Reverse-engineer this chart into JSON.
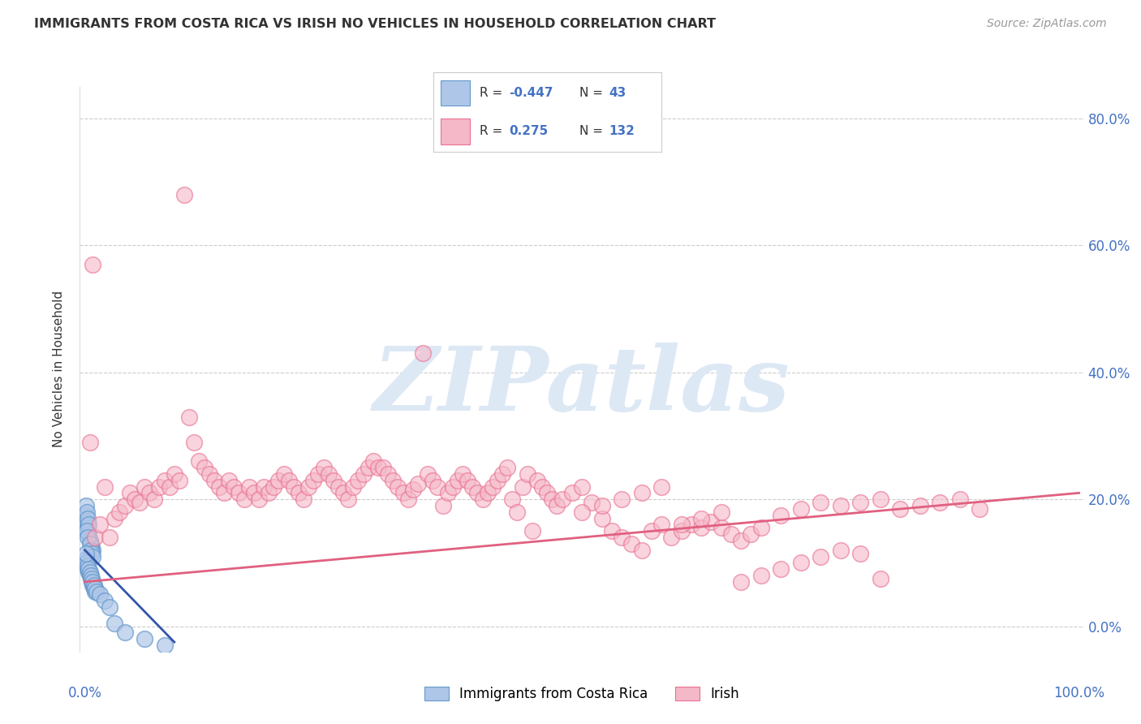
{
  "title": "IMMIGRANTS FROM COSTA RICA VS IRISH NO VEHICLES IN HOUSEHOLD CORRELATION CHART",
  "source": "Source: ZipAtlas.com",
  "ylabel": "No Vehicles in Household",
  "ytick_positions": [
    0.0,
    0.2,
    0.4,
    0.6,
    0.8
  ],
  "ytick_labels": [
    "0.0%",
    "20.0%",
    "40.0%",
    "60.0%",
    "80.0%"
  ],
  "color_blue_fill": "#aec6e8",
  "color_blue_edge": "#6699cc",
  "color_pink_fill": "#f5b8c8",
  "color_pink_edge": "#e87090",
  "line_blue": "#3355aa",
  "line_pink": "#e06080",
  "watermark": "ZIPatlas",
  "watermark_color": "#dde8f5",
  "xlim": [
    -0.005,
    1.005
  ],
  "ylim": [
    -0.04,
    0.85
  ],
  "blue_scatter": [
    [
      0.001,
      0.175
    ],
    [
      0.002,
      0.165
    ],
    [
      0.003,
      0.155
    ],
    [
      0.004,
      0.145
    ],
    [
      0.005,
      0.135
    ],
    [
      0.006,
      0.13
    ],
    [
      0.007,
      0.125
    ],
    [
      0.008,
      0.12
    ],
    [
      0.001,
      0.19
    ],
    [
      0.002,
      0.18
    ],
    [
      0.003,
      0.17
    ],
    [
      0.004,
      0.16
    ],
    [
      0.002,
      0.15
    ],
    [
      0.003,
      0.14
    ],
    [
      0.005,
      0.13
    ],
    [
      0.006,
      0.12
    ],
    [
      0.007,
      0.115
    ],
    [
      0.008,
      0.11
    ],
    [
      0.001,
      0.1
    ],
    [
      0.002,
      0.095
    ],
    [
      0.003,
      0.09
    ],
    [
      0.004,
      0.085
    ],
    [
      0.005,
      0.08
    ],
    [
      0.006,
      0.075
    ],
    [
      0.007,
      0.07
    ],
    [
      0.008,
      0.065
    ],
    [
      0.009,
      0.06
    ],
    [
      0.01,
      0.055
    ],
    [
      0.001,
      0.105
    ],
    [
      0.002,
      0.1
    ],
    [
      0.003,
      0.095
    ],
    [
      0.004,
      0.09
    ],
    [
      0.005,
      0.085
    ],
    [
      0.006,
      0.08
    ],
    [
      0.007,
      0.075
    ],
    [
      0.008,
      0.07
    ],
    [
      0.009,
      0.065
    ],
    [
      0.01,
      0.06
    ],
    [
      0.012,
      0.055
    ],
    [
      0.015,
      0.05
    ],
    [
      0.02,
      0.04
    ],
    [
      0.025,
      0.03
    ],
    [
      0.001,
      0.115
    ],
    [
      0.03,
      0.005
    ],
    [
      0.04,
      -0.01
    ],
    [
      0.06,
      -0.02
    ],
    [
      0.08,
      -0.03
    ]
  ],
  "pink_scatter": [
    [
      0.005,
      0.29
    ],
    [
      0.008,
      0.57
    ],
    [
      0.01,
      0.14
    ],
    [
      0.015,
      0.16
    ],
    [
      0.02,
      0.22
    ],
    [
      0.025,
      0.14
    ],
    [
      0.03,
      0.17
    ],
    [
      0.035,
      0.18
    ],
    [
      0.04,
      0.19
    ],
    [
      0.045,
      0.21
    ],
    [
      0.05,
      0.2
    ],
    [
      0.055,
      0.195
    ],
    [
      0.06,
      0.22
    ],
    [
      0.065,
      0.21
    ],
    [
      0.07,
      0.2
    ],
    [
      0.075,
      0.22
    ],
    [
      0.08,
      0.23
    ],
    [
      0.085,
      0.22
    ],
    [
      0.09,
      0.24
    ],
    [
      0.095,
      0.23
    ],
    [
      0.1,
      0.68
    ],
    [
      0.105,
      0.33
    ],
    [
      0.11,
      0.29
    ],
    [
      0.115,
      0.26
    ],
    [
      0.12,
      0.25
    ],
    [
      0.125,
      0.24
    ],
    [
      0.13,
      0.23
    ],
    [
      0.135,
      0.22
    ],
    [
      0.14,
      0.21
    ],
    [
      0.145,
      0.23
    ],
    [
      0.15,
      0.22
    ],
    [
      0.155,
      0.21
    ],
    [
      0.16,
      0.2
    ],
    [
      0.165,
      0.22
    ],
    [
      0.17,
      0.21
    ],
    [
      0.175,
      0.2
    ],
    [
      0.18,
      0.22
    ],
    [
      0.185,
      0.21
    ],
    [
      0.19,
      0.22
    ],
    [
      0.195,
      0.23
    ],
    [
      0.2,
      0.24
    ],
    [
      0.205,
      0.23
    ],
    [
      0.21,
      0.22
    ],
    [
      0.215,
      0.21
    ],
    [
      0.22,
      0.2
    ],
    [
      0.225,
      0.22
    ],
    [
      0.23,
      0.23
    ],
    [
      0.235,
      0.24
    ],
    [
      0.24,
      0.25
    ],
    [
      0.245,
      0.24
    ],
    [
      0.25,
      0.23
    ],
    [
      0.255,
      0.22
    ],
    [
      0.26,
      0.21
    ],
    [
      0.265,
      0.2
    ],
    [
      0.27,
      0.22
    ],
    [
      0.275,
      0.23
    ],
    [
      0.28,
      0.24
    ],
    [
      0.285,
      0.25
    ],
    [
      0.29,
      0.26
    ],
    [
      0.295,
      0.25
    ],
    [
      0.3,
      0.25
    ],
    [
      0.305,
      0.24
    ],
    [
      0.31,
      0.23
    ],
    [
      0.315,
      0.22
    ],
    [
      0.32,
      0.21
    ],
    [
      0.325,
      0.2
    ],
    [
      0.33,
      0.215
    ],
    [
      0.335,
      0.225
    ],
    [
      0.34,
      0.43
    ],
    [
      0.345,
      0.24
    ],
    [
      0.35,
      0.23
    ],
    [
      0.355,
      0.22
    ],
    [
      0.36,
      0.19
    ],
    [
      0.365,
      0.21
    ],
    [
      0.37,
      0.22
    ],
    [
      0.375,
      0.23
    ],
    [
      0.38,
      0.24
    ],
    [
      0.385,
      0.23
    ],
    [
      0.39,
      0.22
    ],
    [
      0.395,
      0.21
    ],
    [
      0.4,
      0.2
    ],
    [
      0.405,
      0.21
    ],
    [
      0.41,
      0.22
    ],
    [
      0.415,
      0.23
    ],
    [
      0.42,
      0.24
    ],
    [
      0.425,
      0.25
    ],
    [
      0.43,
      0.2
    ],
    [
      0.435,
      0.18
    ],
    [
      0.44,
      0.22
    ],
    [
      0.445,
      0.24
    ],
    [
      0.45,
      0.15
    ],
    [
      0.455,
      0.23
    ],
    [
      0.46,
      0.22
    ],
    [
      0.465,
      0.21
    ],
    [
      0.47,
      0.2
    ],
    [
      0.475,
      0.19
    ],
    [
      0.48,
      0.2
    ],
    [
      0.49,
      0.21
    ],
    [
      0.5,
      0.22
    ],
    [
      0.51,
      0.195
    ],
    [
      0.52,
      0.17
    ],
    [
      0.53,
      0.15
    ],
    [
      0.54,
      0.14
    ],
    [
      0.55,
      0.13
    ],
    [
      0.56,
      0.12
    ],
    [
      0.57,
      0.15
    ],
    [
      0.58,
      0.16
    ],
    [
      0.59,
      0.14
    ],
    [
      0.6,
      0.15
    ],
    [
      0.61,
      0.16
    ],
    [
      0.62,
      0.155
    ],
    [
      0.63,
      0.165
    ],
    [
      0.64,
      0.155
    ],
    [
      0.65,
      0.145
    ],
    [
      0.66,
      0.135
    ],
    [
      0.67,
      0.145
    ],
    [
      0.68,
      0.155
    ],
    [
      0.7,
      0.175
    ],
    [
      0.72,
      0.185
    ],
    [
      0.74,
      0.195
    ],
    [
      0.76,
      0.19
    ],
    [
      0.78,
      0.195
    ],
    [
      0.8,
      0.2
    ],
    [
      0.82,
      0.185
    ],
    [
      0.84,
      0.19
    ],
    [
      0.86,
      0.195
    ],
    [
      0.88,
      0.2
    ],
    [
      0.9,
      0.185
    ],
    [
      0.66,
      0.07
    ],
    [
      0.68,
      0.08
    ],
    [
      0.7,
      0.09
    ],
    [
      0.72,
      0.1
    ],
    [
      0.74,
      0.11
    ],
    [
      0.76,
      0.12
    ],
    [
      0.78,
      0.115
    ],
    [
      0.8,
      0.075
    ],
    [
      0.5,
      0.18
    ],
    [
      0.52,
      0.19
    ],
    [
      0.54,
      0.2
    ],
    [
      0.56,
      0.21
    ],
    [
      0.58,
      0.22
    ],
    [
      0.6,
      0.16
    ],
    [
      0.62,
      0.17
    ],
    [
      0.64,
      0.18
    ]
  ],
  "blue_line_x": [
    0.0,
    0.09
  ],
  "blue_line_y": [
    0.12,
    -0.025
  ],
  "pink_line_x": [
    0.0,
    1.0
  ],
  "pink_line_y": [
    0.07,
    0.21
  ]
}
